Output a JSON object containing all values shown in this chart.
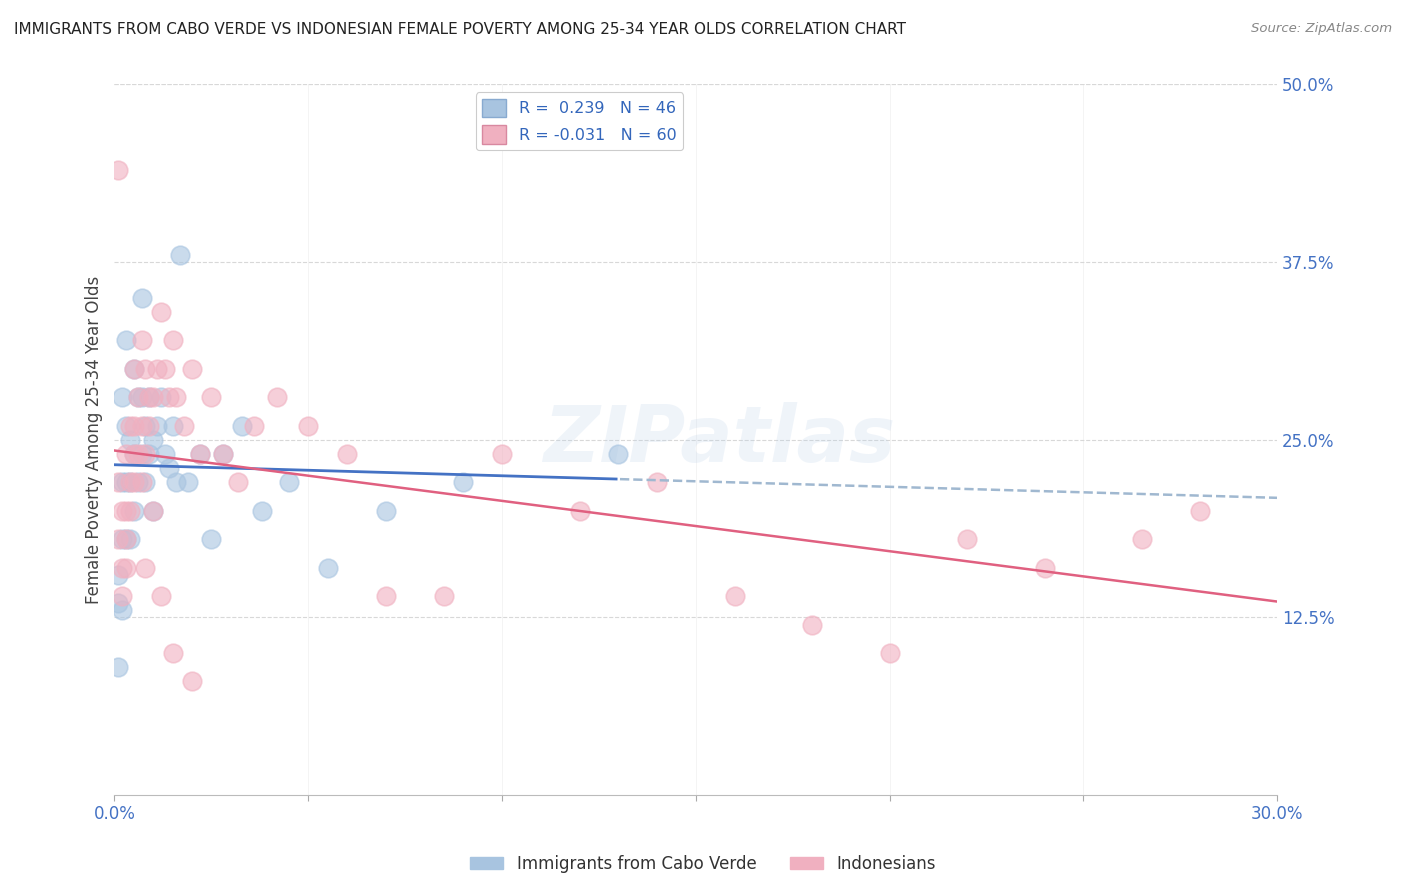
{
  "title": "IMMIGRANTS FROM CABO VERDE VS INDONESIAN FEMALE POVERTY AMONG 25-34 YEAR OLDS CORRELATION CHART",
  "source": "Source: ZipAtlas.com",
  "ylabel": "Female Poverty Among 25-34 Year Olds",
  "x_min": 0.0,
  "x_max": 0.3,
  "y_min": 0.0,
  "y_max": 0.5,
  "y_ticks": [
    0.0,
    0.125,
    0.25,
    0.375,
    0.5
  ],
  "y_tick_labels": [
    "",
    "12.5%",
    "25.0%",
    "37.5%",
    "50.0%"
  ],
  "watermark": "ZIPatlas",
  "cabo_verde_color": "#a8c4e0",
  "cabo_verde_line_color": "#4472c4",
  "cabo_verde_dash_color": "#a0b8d0",
  "indonesian_color": "#f0b0c0",
  "indonesian_line_color": "#e06080",
  "background_color": "#ffffff",
  "grid_color": "#d8d8d8",
  "title_color": "#222222",
  "axis_label_color": "#444444",
  "right_tick_color": "#4472c4",
  "bottom_tick_color": "#4472c4",
  "cabo_verde_x": [
    0.001,
    0.001,
    0.001,
    0.002,
    0.002,
    0.002,
    0.002,
    0.003,
    0.003,
    0.003,
    0.003,
    0.004,
    0.004,
    0.004,
    0.005,
    0.005,
    0.005,
    0.006,
    0.006,
    0.007,
    0.007,
    0.007,
    0.008,
    0.008,
    0.009,
    0.009,
    0.01,
    0.01,
    0.011,
    0.012,
    0.013,
    0.014,
    0.015,
    0.016,
    0.017,
    0.019,
    0.022,
    0.025,
    0.028,
    0.033,
    0.038,
    0.045,
    0.055,
    0.07,
    0.09,
    0.13
  ],
  "cabo_verde_y": [
    0.155,
    0.135,
    0.09,
    0.28,
    0.22,
    0.18,
    0.13,
    0.32,
    0.26,
    0.22,
    0.18,
    0.25,
    0.22,
    0.18,
    0.3,
    0.24,
    0.2,
    0.28,
    0.22,
    0.35,
    0.28,
    0.24,
    0.26,
    0.22,
    0.28,
    0.24,
    0.25,
    0.2,
    0.26,
    0.28,
    0.24,
    0.23,
    0.26,
    0.22,
    0.38,
    0.22,
    0.24,
    0.18,
    0.24,
    0.26,
    0.2,
    0.22,
    0.16,
    0.2,
    0.22,
    0.24
  ],
  "indonesian_x": [
    0.001,
    0.001,
    0.001,
    0.002,
    0.002,
    0.003,
    0.003,
    0.003,
    0.004,
    0.004,
    0.005,
    0.005,
    0.005,
    0.006,
    0.006,
    0.007,
    0.007,
    0.008,
    0.008,
    0.009,
    0.009,
    0.01,
    0.011,
    0.012,
    0.013,
    0.014,
    0.015,
    0.016,
    0.018,
    0.02,
    0.022,
    0.025,
    0.028,
    0.032,
    0.036,
    0.042,
    0.05,
    0.06,
    0.07,
    0.085,
    0.1,
    0.12,
    0.14,
    0.16,
    0.18,
    0.2,
    0.22,
    0.24,
    0.265,
    0.28,
    0.002,
    0.003,
    0.004,
    0.005,
    0.007,
    0.008,
    0.01,
    0.012,
    0.015,
    0.02
  ],
  "indonesian_y": [
    0.22,
    0.18,
    0.44,
    0.2,
    0.16,
    0.24,
    0.2,
    0.16,
    0.26,
    0.22,
    0.3,
    0.26,
    0.22,
    0.28,
    0.24,
    0.32,
    0.26,
    0.3,
    0.24,
    0.28,
    0.26,
    0.28,
    0.3,
    0.34,
    0.3,
    0.28,
    0.32,
    0.28,
    0.26,
    0.3,
    0.24,
    0.28,
    0.24,
    0.22,
    0.26,
    0.28,
    0.26,
    0.24,
    0.14,
    0.14,
    0.24,
    0.2,
    0.22,
    0.14,
    0.12,
    0.1,
    0.18,
    0.16,
    0.18,
    0.2,
    0.14,
    0.18,
    0.2,
    0.24,
    0.22,
    0.16,
    0.2,
    0.14,
    0.1,
    0.08
  ]
}
